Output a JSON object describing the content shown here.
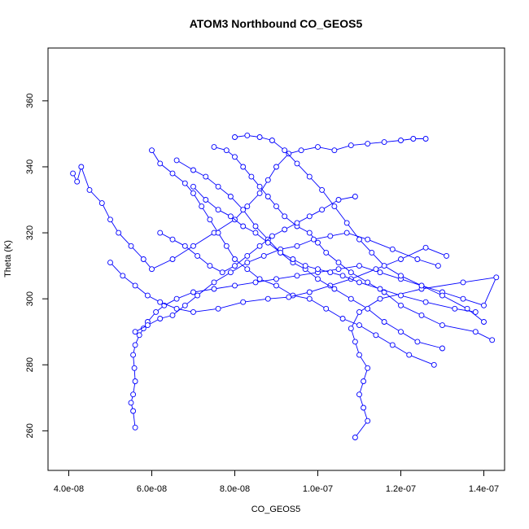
{
  "chart_data": {
    "type": "line",
    "title": "ATOM3 Northbound CO_GEOS5",
    "xlabel": "CO_GEOS5",
    "ylabel": "Theta (K)",
    "xlim": [
      3.5e-08,
      1.45e-07
    ],
    "ylim": [
      248,
      376
    ],
    "x_ticks": [
      "4.0e-08",
      "6.0e-08",
      "8.0e-08",
      "1.0e-07",
      "1.2e-07",
      "1.4e-07"
    ],
    "x_tick_values": [
      4e-08,
      6e-08,
      8e-08,
      1e-07,
      1.2e-07,
      1.4e-07
    ],
    "y_ticks": [
      "260",
      "280",
      "300",
      "320",
      "340",
      "360"
    ],
    "y_tick_values": [
      260,
      280,
      300,
      320,
      340,
      360
    ],
    "grid": false,
    "marker": "open-circle",
    "series": [
      {
        "color": "#0000FF",
        "points": [
          [
            5.6e-08,
            261
          ],
          [
            5.55e-08,
            266
          ],
          [
            5.5e-08,
            268.5
          ],
          [
            5.55e-08,
            271
          ],
          [
            5.6e-08,
            275
          ],
          [
            5.58e-08,
            279
          ],
          [
            5.55e-08,
            283
          ],
          [
            5.6e-08,
            286
          ],
          [
            5.7e-08,
            289
          ],
          [
            5.8e-08,
            291
          ],
          [
            5.9e-08,
            293
          ],
          [
            6.1e-08,
            296
          ],
          [
            6.3e-08,
            298
          ],
          [
            6.6e-08,
            300
          ],
          [
            7e-08,
            302
          ],
          [
            7.5e-08,
            303
          ],
          [
            8e-08,
            304
          ],
          [
            8.5e-08,
            305
          ],
          [
            9e-08,
            306
          ],
          [
            9.5e-08,
            307
          ],
          [
            1e-07,
            308
          ],
          [
            1.05e-07,
            309
          ],
          [
            1.1e-07,
            310
          ],
          [
            1.15e-07,
            308
          ],
          [
            1.2e-07,
            306
          ],
          [
            1.25e-07,
            304
          ],
          [
            1.3e-07,
            302
          ],
          [
            1.35e-07,
            300
          ],
          [
            1.4e-07,
            298
          ],
          [
            1.43e-07,
            306.5
          ],
          [
            1.35e-07,
            305
          ],
          [
            1.25e-07,
            303
          ],
          [
            1.15e-07,
            300
          ],
          [
            1.1e-07,
            296
          ],
          [
            1.08e-07,
            291
          ],
          [
            1.09e-07,
            287
          ],
          [
            1.1e-07,
            283
          ],
          [
            1.12e-07,
            279
          ],
          [
            1.11e-07,
            275
          ],
          [
            1.1e-07,
            271
          ],
          [
            1.11e-07,
            267
          ],
          [
            1.12e-07,
            263
          ],
          [
            1.09e-07,
            258
          ]
        ]
      },
      {
        "color": "#0000FF",
        "points": [
          [
            4.1e-08,
            338
          ],
          [
            4.2e-08,
            335.5
          ],
          [
            4.3e-08,
            340
          ],
          [
            4.5e-08,
            333
          ],
          [
            4.8e-08,
            329
          ],
          [
            5e-08,
            324
          ],
          [
            5.2e-08,
            320
          ],
          [
            5.5e-08,
            316
          ],
          [
            5.8e-08,
            312
          ],
          [
            6e-08,
            309
          ],
          [
            6.5e-08,
            312
          ],
          [
            7e-08,
            316
          ],
          [
            7.5e-08,
            320
          ],
          [
            8e-08,
            324
          ],
          [
            8.3e-08,
            328
          ],
          [
            8.6e-08,
            332
          ],
          [
            8.8e-08,
            336
          ],
          [
            9e-08,
            340
          ],
          [
            9.3e-08,
            344
          ],
          [
            9.6e-08,
            345
          ],
          [
            1e-07,
            346
          ],
          [
            1.04e-07,
            345
          ],
          [
            1.08e-07,
            346.5
          ],
          [
            1.12e-07,
            347
          ],
          [
            1.16e-07,
            347.5
          ],
          [
            1.2e-07,
            348
          ],
          [
            1.23e-07,
            348.5
          ],
          [
            1.26e-07,
            348.5
          ]
        ]
      },
      {
        "color": "#0000FF",
        "points": [
          [
            7.5e-08,
            346
          ],
          [
            7.8e-08,
            345
          ],
          [
            8e-08,
            343
          ],
          [
            8.2e-08,
            340
          ],
          [
            8.4e-08,
            337
          ],
          [
            8.6e-08,
            334
          ],
          [
            8.8e-08,
            331
          ],
          [
            9e-08,
            328
          ],
          [
            9.2e-08,
            325
          ],
          [
            9.5e-08,
            322
          ],
          [
            9.8e-08,
            320
          ],
          [
            1e-07,
            317
          ],
          [
            1.02e-07,
            314
          ],
          [
            1.05e-07,
            311
          ],
          [
            1.08e-07,
            308
          ],
          [
            1.12e-07,
            305
          ],
          [
            1.16e-07,
            302
          ],
          [
            1.2e-07,
            298
          ],
          [
            1.25e-07,
            295
          ],
          [
            1.3e-07,
            292
          ],
          [
            1.38e-07,
            290
          ],
          [
            1.42e-07,
            287.5
          ]
        ]
      },
      {
        "color": "#0000FF",
        "points": [
          [
            6e-08,
            345
          ],
          [
            6.2e-08,
            341
          ],
          [
            6.5e-08,
            338
          ],
          [
            6.8e-08,
            335
          ],
          [
            7e-08,
            332
          ],
          [
            7.2e-08,
            328
          ],
          [
            7.4e-08,
            324
          ],
          [
            7.6e-08,
            320
          ],
          [
            7.8e-08,
            316
          ],
          [
            8e-08,
            312
          ],
          [
            8.3e-08,
            309
          ],
          [
            8.6e-08,
            306
          ],
          [
            9e-08,
            304
          ],
          [
            9.4e-08,
            301
          ],
          [
            9.8e-08,
            300
          ],
          [
            1.02e-07,
            297
          ],
          [
            1.06e-07,
            294
          ],
          [
            1.1e-07,
            292
          ],
          [
            1.14e-07,
            289
          ],
          [
            1.18e-07,
            286
          ],
          [
            1.22e-07,
            283
          ],
          [
            1.28e-07,
            280
          ]
        ]
      },
      {
        "color": "#0000FF",
        "points": [
          [
            5e-08,
            311
          ],
          [
            5.3e-08,
            307
          ],
          [
            5.6e-08,
            304
          ],
          [
            5.9e-08,
            301
          ],
          [
            6.2e-08,
            299
          ],
          [
            6.6e-08,
            297
          ],
          [
            7e-08,
            296
          ],
          [
            7.6e-08,
            297
          ],
          [
            8.2e-08,
            299
          ],
          [
            8.8e-08,
            300
          ],
          [
            9.3e-08,
            300.5
          ],
          [
            9.8e-08,
            302
          ],
          [
            1.03e-07,
            304
          ],
          [
            1.08e-07,
            306
          ],
          [
            1.14e-07,
            309
          ],
          [
            1.2e-07,
            312
          ],
          [
            1.26e-07,
            315.5
          ],
          [
            1.31e-07,
            313
          ]
        ]
      },
      {
        "color": "#0000FF",
        "points": [
          [
            6.6e-08,
            342
          ],
          [
            7e-08,
            339
          ],
          [
            7.3e-08,
            337
          ],
          [
            7.6e-08,
            334
          ],
          [
            7.9e-08,
            331
          ],
          [
            8.2e-08,
            327
          ],
          [
            8.5e-08,
            322
          ],
          [
            8.8e-08,
            318
          ],
          [
            9.1e-08,
            314
          ],
          [
            9.4e-08,
            311
          ],
          [
            9.7e-08,
            309
          ],
          [
            1e-07,
            306
          ],
          [
            1.04e-07,
            303
          ],
          [
            1.08e-07,
            300
          ],
          [
            1.12e-07,
            297
          ],
          [
            1.16e-07,
            293
          ],
          [
            1.2e-07,
            290
          ],
          [
            1.24e-07,
            287
          ],
          [
            1.3e-07,
            285
          ]
        ]
      },
      {
        "color": "#0000FF",
        "points": [
          [
            8e-08,
            349
          ],
          [
            8.3e-08,
            349.5
          ],
          [
            8.6e-08,
            349
          ],
          [
            8.9e-08,
            348
          ],
          [
            9.2e-08,
            345
          ],
          [
            9.5e-08,
            341
          ],
          [
            9.8e-08,
            337
          ],
          [
            1.01e-07,
            333
          ],
          [
            1.04e-07,
            328
          ],
          [
            1.07e-07,
            323
          ],
          [
            1.1e-07,
            318
          ],
          [
            1.13e-07,
            314
          ],
          [
            1.16e-07,
            310
          ],
          [
            1.2e-07,
            307
          ],
          [
            1.25e-07,
            304
          ],
          [
            1.3e-07,
            301
          ],
          [
            1.36e-07,
            297
          ],
          [
            1.4e-07,
            293
          ]
        ]
      },
      {
        "color": "#0000FF",
        "points": [
          [
            6.2e-08,
            320
          ],
          [
            6.5e-08,
            318
          ],
          [
            6.8e-08,
            316
          ],
          [
            7.1e-08,
            313
          ],
          [
            7.4e-08,
            310
          ],
          [
            7.7e-08,
            308
          ],
          [
            8e-08,
            310
          ],
          [
            8.3e-08,
            313
          ],
          [
            8.6e-08,
            316
          ],
          [
            8.9e-08,
            319
          ],
          [
            9.2e-08,
            321
          ],
          [
            9.5e-08,
            323
          ],
          [
            9.8e-08,
            325
          ],
          [
            1.01e-07,
            327
          ],
          [
            1.05e-07,
            330
          ],
          [
            1.09e-07,
            331
          ]
        ]
      },
      {
        "color": "#0000FF",
        "points": [
          [
            5.6e-08,
            290
          ],
          [
            5.9e-08,
            292
          ],
          [
            6.2e-08,
            294
          ],
          [
            6.5e-08,
            295
          ],
          [
            6.8e-08,
            298
          ],
          [
            7.1e-08,
            301
          ],
          [
            7.5e-08,
            305
          ],
          [
            7.9e-08,
            308
          ],
          [
            8.3e-08,
            311
          ],
          [
            8.7e-08,
            313
          ],
          [
            9.1e-08,
            315
          ],
          [
            9.5e-08,
            316
          ],
          [
            9.9e-08,
            318
          ],
          [
            1.03e-07,
            319
          ],
          [
            1.07e-07,
            320
          ],
          [
            1.12e-07,
            318
          ],
          [
            1.18e-07,
            315
          ],
          [
            1.24e-07,
            312
          ],
          [
            1.29e-07,
            310
          ]
        ]
      },
      {
        "color": "#0000FF",
        "points": [
          [
            7e-08,
            334
          ],
          [
            7.3e-08,
            330
          ],
          [
            7.6e-08,
            327
          ],
          [
            7.9e-08,
            325
          ],
          [
            8.2e-08,
            322
          ],
          [
            8.5e-08,
            320
          ],
          [
            8.8e-08,
            317
          ],
          [
            9.1e-08,
            314
          ],
          [
            9.4e-08,
            312
          ],
          [
            9.7e-08,
            310
          ],
          [
            1e-07,
            309
          ],
          [
            1.03e-07,
            308
          ],
          [
            1.06e-07,
            307
          ],
          [
            1.1e-07,
            305
          ],
          [
            1.15e-07,
            303
          ],
          [
            1.2e-07,
            301
          ],
          [
            1.26e-07,
            299
          ],
          [
            1.33e-07,
            297
          ],
          [
            1.38e-07,
            296
          ]
        ]
      }
    ]
  }
}
